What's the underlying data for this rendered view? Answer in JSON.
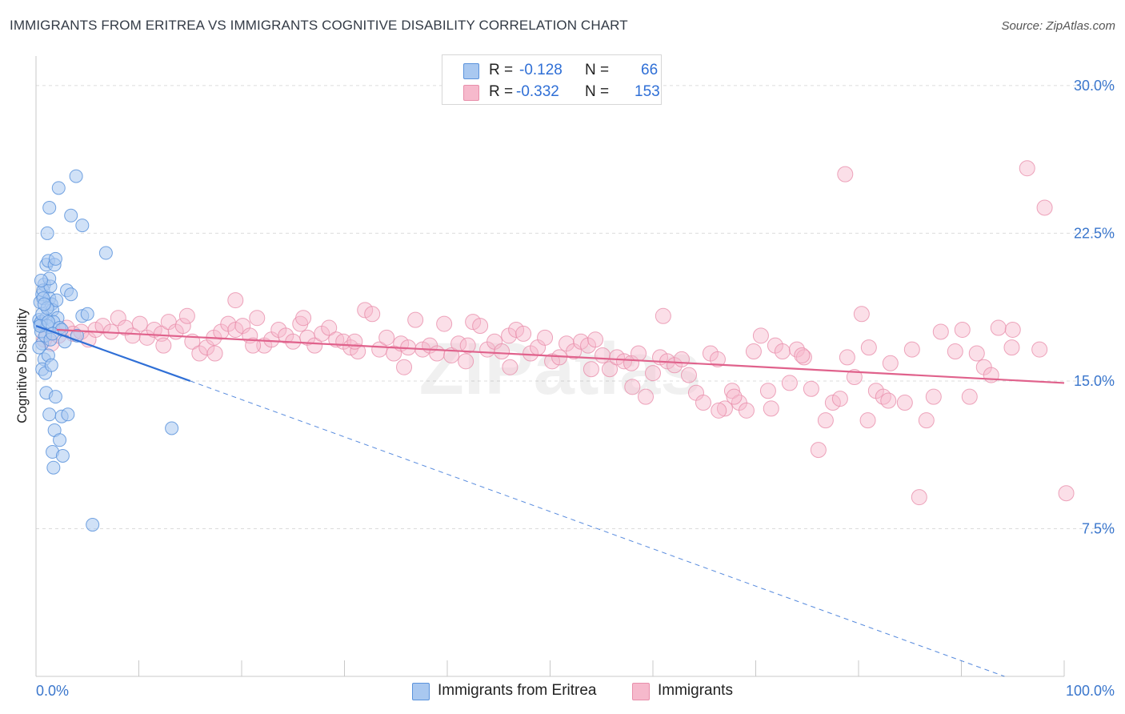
{
  "title": "IMMIGRANTS FROM ERITREA VS IMMIGRANTS COGNITIVE DISABILITY CORRELATION CHART",
  "source": "Source: ZipAtlas.com",
  "watermark": "ZIPatlas",
  "legend": {
    "rows": [
      {
        "r_label": "R =",
        "r_value": "-0.128",
        "n_label": "N =",
        "n_value": "66",
        "color": "#a9c8f0"
      },
      {
        "r_label": "R =",
        "r_value": "-0.332",
        "n_label": "N =",
        "n_value": "153",
        "color": "#f6b9cc"
      }
    ]
  },
  "bottom_legend": [
    {
      "label": "Immigrants from Eritrea",
      "color": "#a9c8f0"
    },
    {
      "label": "Immigrants",
      "color": "#f6b9cc"
    }
  ],
  "colors": {
    "blue_fill": "#a9c8f0",
    "blue_stroke": "#5b93dc",
    "blue_line": "#2f6fd6",
    "pink_fill": "#f6b9cc",
    "pink_stroke": "#e88fab",
    "pink_line": "#e0628c",
    "tick_text": "#3a76cc"
  },
  "chart_data": {
    "type": "scatter",
    "title": "IMMIGRANTS FROM ERITREA VS IMMIGRANTS COGNITIVE DISABILITY CORRELATION CHART",
    "xlabel": "",
    "ylabel": "Cognitive Disability",
    "xlim": [
      0,
      100
    ],
    "ylim": [
      0,
      31.5
    ],
    "x_ticks": [
      "0.0%",
      "100.0%"
    ],
    "y_ticks": [
      {
        "value": 7.5,
        "label": "7.5%"
      },
      {
        "value": 15.0,
        "label": "15.0%"
      },
      {
        "value": 22.5,
        "label": "22.5%"
      },
      {
        "value": 30.0,
        "label": "30.0%"
      }
    ],
    "grid": true,
    "legend_position": "top-center",
    "series": [
      {
        "name": "Immigrants from Eritrea",
        "r": -0.128,
        "n": 66,
        "trend": {
          "x": [
            0,
            15
          ],
          "y": [
            17.8,
            15.0
          ],
          "dashed_to": {
            "x": 100,
            "y": -1.1
          }
        },
        "points": [
          [
            0.3,
            18.1
          ],
          [
            0.4,
            17.9
          ],
          [
            0.5,
            17.5
          ],
          [
            0.6,
            16.9
          ],
          [
            0.3,
            16.7
          ],
          [
            0.8,
            16.1
          ],
          [
            0.6,
            15.6
          ],
          [
            0.9,
            15.4
          ],
          [
            0.5,
            18.0
          ],
          [
            1.0,
            18.2
          ],
          [
            0.4,
            19.0
          ],
          [
            0.6,
            19.4
          ],
          [
            0.8,
            19.9
          ],
          [
            1.0,
            20.9
          ],
          [
            1.2,
            21.1
          ],
          [
            0.7,
            19.6
          ],
          [
            1.3,
            19.2
          ],
          [
            1.5,
            18.9
          ],
          [
            1.6,
            18.6
          ],
          [
            1.4,
            19.8
          ],
          [
            1.3,
            20.2
          ],
          [
            1.8,
            20.9
          ],
          [
            1.9,
            21.2
          ],
          [
            2.0,
            19.1
          ],
          [
            3.0,
            19.6
          ],
          [
            3.4,
            19.4
          ],
          [
            2.1,
            18.2
          ],
          [
            1.7,
            18.0
          ],
          [
            1.1,
            17.8
          ],
          [
            2.3,
            17.7
          ],
          [
            2.5,
            17.6
          ],
          [
            4.5,
            18.3
          ],
          [
            5.0,
            18.4
          ],
          [
            6.8,
            21.5
          ],
          [
            1.1,
            22.5
          ],
          [
            1.3,
            23.8
          ],
          [
            3.4,
            23.4
          ],
          [
            4.5,
            22.9
          ],
          [
            2.2,
            24.8
          ],
          [
            3.9,
            25.4
          ],
          [
            1.2,
            16.3
          ],
          [
            1.5,
            15.8
          ],
          [
            1.0,
            14.4
          ],
          [
            1.9,
            14.2
          ],
          [
            1.3,
            13.3
          ],
          [
            2.5,
            13.2
          ],
          [
            3.1,
            13.3
          ],
          [
            1.8,
            12.5
          ],
          [
            2.3,
            12.0
          ],
          [
            1.6,
            11.4
          ],
          [
            2.6,
            11.2
          ],
          [
            1.7,
            10.6
          ],
          [
            13.2,
            12.6
          ],
          [
            5.5,
            7.7
          ],
          [
            0.6,
            18.4
          ],
          [
            0.9,
            17.3
          ],
          [
            1.4,
            17.1
          ],
          [
            0.7,
            19.2
          ],
          [
            1.1,
            18.7
          ],
          [
            2.8,
            17.0
          ],
          [
            0.5,
            20.1
          ],
          [
            1.6,
            17.4
          ],
          [
            4.0,
            17.3
          ],
          [
            0.4,
            17.8
          ],
          [
            1.2,
            18.0
          ],
          [
            0.8,
            18.9
          ]
        ]
      },
      {
        "name": "Immigrants",
        "r": -0.332,
        "n": 153,
        "trend": {
          "x": [
            2,
            100
          ],
          "y": [
            17.6,
            14.9
          ]
        },
        "points": [
          [
            0.8,
            17.1
          ],
          [
            1.5,
            16.9
          ],
          [
            2.2,
            17.3
          ],
          [
            3.0,
            17.7
          ],
          [
            3.6,
            17.4
          ],
          [
            4.4,
            17.5
          ],
          [
            5.1,
            17.1
          ],
          [
            5.8,
            17.6
          ],
          [
            6.5,
            17.8
          ],
          [
            7.3,
            17.5
          ],
          [
            8.0,
            18.2
          ],
          [
            8.7,
            17.7
          ],
          [
            9.4,
            17.3
          ],
          [
            10.1,
            17.9
          ],
          [
            10.8,
            17.2
          ],
          [
            11.5,
            17.6
          ],
          [
            12.2,
            17.4
          ],
          [
            12.9,
            18.0
          ],
          [
            13.6,
            17.5
          ],
          [
            14.3,
            17.8
          ],
          [
            14.7,
            18.3
          ],
          [
            15.2,
            17.0
          ],
          [
            15.9,
            16.4
          ],
          [
            16.6,
            16.7
          ],
          [
            17.3,
            17.2
          ],
          [
            18.0,
            17.5
          ],
          [
            18.7,
            17.9
          ],
          [
            19.4,
            17.6
          ],
          [
            20.1,
            17.8
          ],
          [
            20.8,
            17.3
          ],
          [
            21.5,
            18.2
          ],
          [
            22.2,
            16.8
          ],
          [
            22.9,
            17.1
          ],
          [
            23.6,
            17.6
          ],
          [
            24.3,
            17.3
          ],
          [
            25.0,
            17.0
          ],
          [
            25.7,
            17.9
          ],
          [
            26.4,
            17.2
          ],
          [
            27.1,
            16.8
          ],
          [
            27.8,
            17.4
          ],
          [
            28.5,
            17.7
          ],
          [
            29.2,
            17.1
          ],
          [
            29.9,
            17.0
          ],
          [
            30.6,
            16.7
          ],
          [
            31.3,
            16.5
          ],
          [
            32.0,
            18.6
          ],
          [
            32.7,
            18.4
          ],
          [
            33.4,
            16.6
          ],
          [
            34.1,
            17.2
          ],
          [
            34.8,
            16.4
          ],
          [
            35.5,
            16.9
          ],
          [
            36.2,
            16.7
          ],
          [
            36.9,
            18.1
          ],
          [
            37.6,
            16.6
          ],
          [
            38.3,
            16.8
          ],
          [
            39.0,
            16.4
          ],
          [
            39.7,
            17.9
          ],
          [
            40.4,
            16.3
          ],
          [
            41.1,
            16.9
          ],
          [
            41.8,
            16.0
          ],
          [
            42.5,
            18.0
          ],
          [
            43.2,
            17.8
          ],
          [
            43.9,
            16.6
          ],
          [
            44.6,
            17.0
          ],
          [
            45.3,
            16.5
          ],
          [
            46.0,
            17.3
          ],
          [
            46.7,
            17.6
          ],
          [
            47.4,
            17.4
          ],
          [
            48.1,
            16.4
          ],
          [
            48.8,
            16.7
          ],
          [
            49.5,
            17.2
          ],
          [
            50.2,
            16.0
          ],
          [
            50.9,
            16.2
          ],
          [
            51.6,
            16.9
          ],
          [
            52.3,
            16.5
          ],
          [
            53.0,
            17.0
          ],
          [
            53.7,
            16.8
          ],
          [
            54.4,
            17.1
          ],
          [
            55.1,
            16.3
          ],
          [
            55.8,
            15.6
          ],
          [
            56.5,
            16.2
          ],
          [
            57.2,
            16.0
          ],
          [
            57.9,
            15.9
          ],
          [
            58.6,
            16.4
          ],
          [
            59.3,
            14.2
          ],
          [
            60.0,
            15.4
          ],
          [
            60.7,
            16.2
          ],
          [
            61.4,
            16.0
          ],
          [
            62.1,
            15.8
          ],
          [
            62.8,
            16.1
          ],
          [
            63.5,
            15.3
          ],
          [
            64.2,
            14.4
          ],
          [
            64.9,
            13.9
          ],
          [
            65.6,
            16.4
          ],
          [
            66.3,
            16.1
          ],
          [
            67.0,
            13.6
          ],
          [
            67.7,
            14.5
          ],
          [
            68.4,
            13.9
          ],
          [
            69.1,
            13.5
          ],
          [
            69.8,
            16.5
          ],
          [
            70.5,
            17.3
          ],
          [
            71.2,
            14.5
          ],
          [
            71.9,
            16.8
          ],
          [
            72.6,
            16.5
          ],
          [
            73.3,
            14.9
          ],
          [
            74.0,
            16.6
          ],
          [
            74.7,
            16.2
          ],
          [
            75.4,
            14.6
          ],
          [
            76.1,
            11.5
          ],
          [
            76.8,
            13.0
          ],
          [
            77.5,
            13.9
          ],
          [
            78.2,
            14.1
          ],
          [
            78.9,
            16.2
          ],
          [
            79.6,
            15.2
          ],
          [
            80.3,
            18.4
          ],
          [
            81.0,
            16.7
          ],
          [
            81.7,
            14.5
          ],
          [
            82.4,
            14.2
          ],
          [
            83.1,
            15.9
          ],
          [
            84.5,
            13.9
          ],
          [
            85.2,
            16.6
          ],
          [
            85.9,
            9.1
          ],
          [
            86.6,
            13.0
          ],
          [
            87.3,
            14.2
          ],
          [
            88.0,
            17.5
          ],
          [
            89.4,
            16.5
          ],
          [
            90.1,
            17.6
          ],
          [
            90.8,
            14.2
          ],
          [
            91.5,
            16.4
          ],
          [
            92.2,
            15.7
          ],
          [
            92.9,
            15.3
          ],
          [
            93.6,
            17.7
          ],
          [
            95.0,
            17.6
          ],
          [
            96.4,
            25.8
          ],
          [
            98.1,
            23.8
          ],
          [
            100.2,
            9.3
          ],
          [
            78.7,
            25.5
          ],
          [
            19.4,
            19.1
          ],
          [
            61.0,
            18.3
          ],
          [
            74.5,
            16.3
          ],
          [
            94.9,
            16.7
          ],
          [
            97.6,
            16.6
          ],
          [
            35.8,
            15.7
          ],
          [
            46.1,
            15.7
          ],
          [
            54.0,
            15.6
          ],
          [
            66.4,
            13.5
          ],
          [
            71.5,
            13.6
          ],
          [
            82.9,
            14.0
          ],
          [
            31.0,
            17.0
          ],
          [
            26.0,
            18.2
          ],
          [
            12.4,
            16.8
          ],
          [
            17.4,
            16.4
          ],
          [
            21.1,
            16.8
          ],
          [
            42.0,
            16.8
          ],
          [
            58.0,
            14.7
          ],
          [
            67.9,
            14.2
          ],
          [
            80.9,
            13.0
          ]
        ]
      }
    ]
  }
}
